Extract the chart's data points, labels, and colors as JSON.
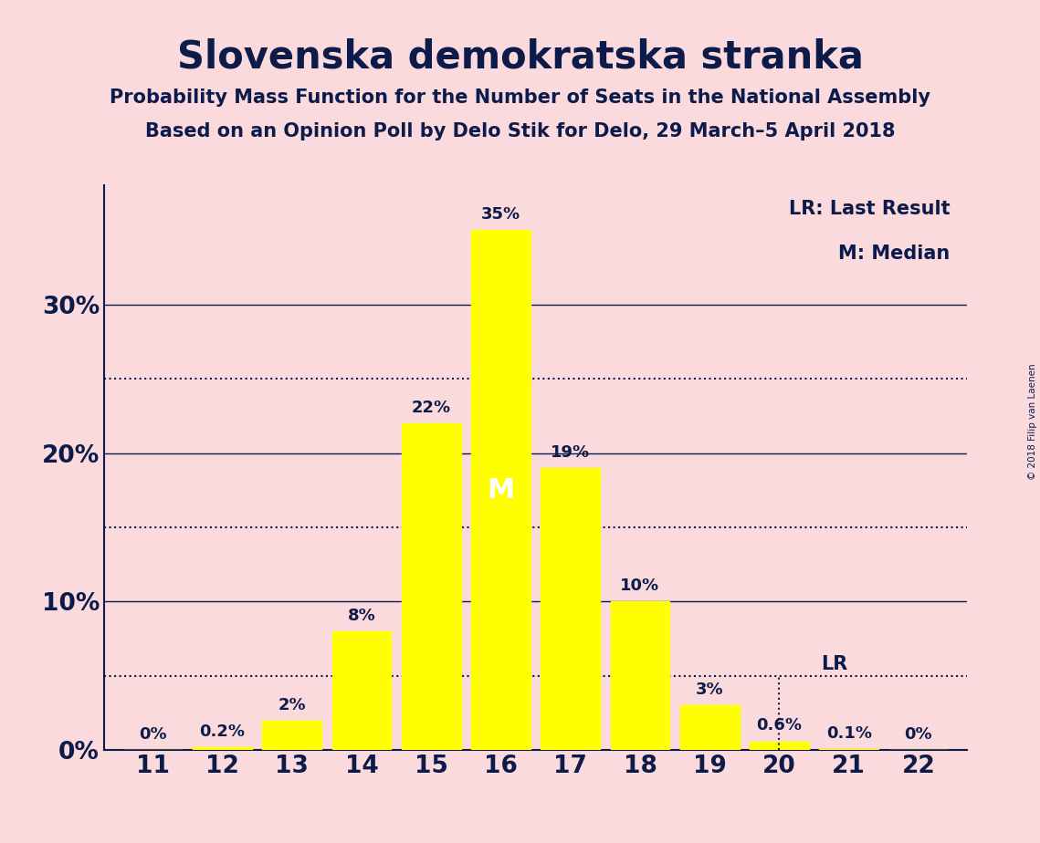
{
  "title": "Slovenska demokratska stranka",
  "subtitle1": "Probability Mass Function for the Number of Seats in the National Assembly",
  "subtitle2": "Based on an Opinion Poll by Delo Stik for Delo, 29 March–5 April 2018",
  "copyright": "© 2018 Filip van Laenen",
  "seats": [
    11,
    12,
    13,
    14,
    15,
    16,
    17,
    18,
    19,
    20,
    21,
    22
  ],
  "probabilities": [
    0.0,
    0.2,
    2.0,
    8.0,
    22.0,
    35.0,
    19.0,
    10.0,
    3.0,
    0.6,
    0.1,
    0.0
  ],
  "bar_color": "#FFFF00",
  "background_color": "#FADADD",
  "text_color": "#0d1b4b",
  "median_seat": 16,
  "median_label": "M",
  "lr_seat": 20,
  "lr_label": "LR",
  "yticks": [
    0,
    10,
    20,
    30
  ],
  "ytick_labels": [
    "0%",
    "10%",
    "20%",
    "30%"
  ],
  "dotted_lines": [
    5,
    15,
    25
  ],
  "ylim": [
    0,
    38
  ],
  "xlim": [
    10.3,
    22.7
  ],
  "bar_width": 0.85,
  "legend_text1": "LR: Last Result",
  "legend_text2": "M: Median",
  "title_fontsize": 30,
  "subtitle_fontsize": 15,
  "tick_fontsize": 19,
  "label_fontsize": 13,
  "median_fontsize": 22,
  "legend_fontsize": 15
}
